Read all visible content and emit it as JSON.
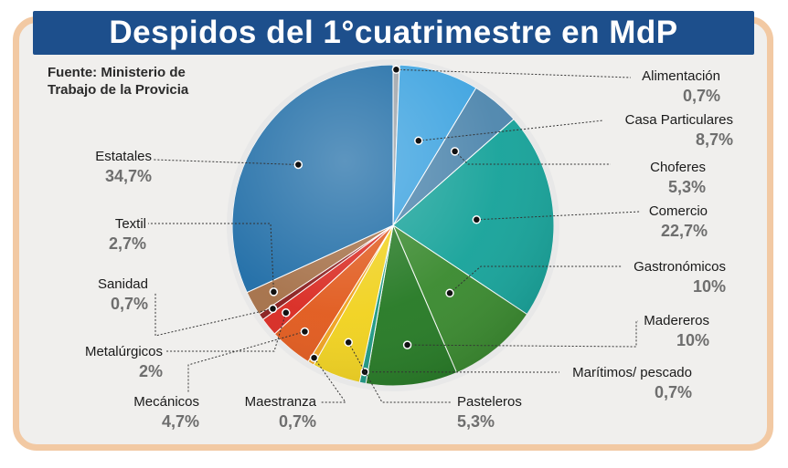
{
  "header": {
    "title": "Despidos del 1°cuatrimestre en MdP",
    "source": "Fuente: Ministerio de\nTrabajo de la Provicia"
  },
  "chart_data": {
    "type": "pie",
    "title": "Despidos del 1°cuatrimestre en MdP",
    "unit": "%",
    "slices": [
      {
        "label": "Alimentación",
        "value": 0.7,
        "display": "0,7%",
        "color": "#9ea4aa"
      },
      {
        "label": "Casa Particulares",
        "value": 8.7,
        "display": "8,7%",
        "color": "#3da3e0"
      },
      {
        "label": "Choferes",
        "value": 5.3,
        "display": "5,3%",
        "color": "#4e86ad"
      },
      {
        "label": "Comercio",
        "value": 22.7,
        "display": "22,7%",
        "color": "#17a39a"
      },
      {
        "label": "Gastronómicos",
        "value": 10,
        "display": "10%",
        "color": "#3a8a2f"
      },
      {
        "label": "Madereros",
        "value": 10,
        "display": "10%",
        "color": "#267a25"
      },
      {
        "label": "Marítimos/ pescado",
        "value": 0.7,
        "display": "0,7%",
        "color": "#1f9a84"
      },
      {
        "label": "Pasteleros",
        "value": 5.3,
        "display": "5,3%",
        "color": "#f1d21f"
      },
      {
        "label": "Maestranza",
        "value": 0.7,
        "display": "0,7%",
        "color": "#f0a21e"
      },
      {
        "label": "Mecánicos",
        "value": 4.7,
        "display": "4,7%",
        "color": "#e15a1d"
      },
      {
        "label": "Metalúrgicos",
        "value": 2,
        "display": "2%",
        "color": "#d92a22"
      },
      {
        "label": "Sanidad",
        "value": 0.7,
        "display": "0,7%",
        "color": "#8a1d1d"
      },
      {
        "label": "Textil",
        "value": 2.7,
        "display": "2,7%",
        "color": "#a57048"
      },
      {
        "label": "Estatales",
        "value": 34.7,
        "display": "34,7%",
        "color": "#1e6ca6"
      }
    ]
  }
}
